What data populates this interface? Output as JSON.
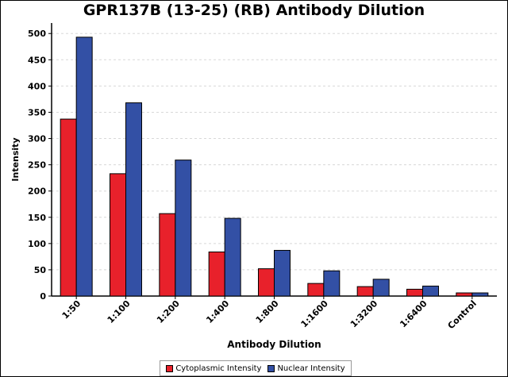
{
  "chart_data": {
    "type": "bar",
    "title": "GPR137B (13-25) (RB) Antibody Dilution",
    "xlabel": "Antibody Dilution",
    "ylabel": "Intensity",
    "ylim": [
      0,
      520
    ],
    "yticks": [
      0,
      50,
      100,
      150,
      200,
      250,
      300,
      350,
      400,
      450,
      500
    ],
    "grid": true,
    "legend_position": "bottom",
    "categories": [
      "1:50",
      "1:100",
      "1:200",
      "1:400",
      "1:800",
      "1:1600",
      "1:3200",
      "1:6400",
      "Control"
    ],
    "series": [
      {
        "name": "Cytoplasmic Intensity",
        "color": "#e8212b",
        "values": [
          337,
          233,
          157,
          84,
          52,
          24,
          18,
          13,
          6
        ]
      },
      {
        "name": "Nuclear Intensity",
        "color": "#3350a5",
        "values": [
          493,
          368,
          259,
          148,
          87,
          48,
          32,
          19,
          6
        ]
      }
    ]
  }
}
